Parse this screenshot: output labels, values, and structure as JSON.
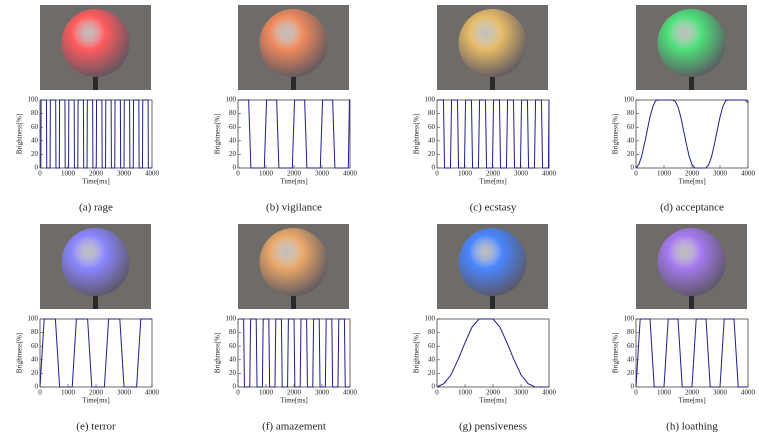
{
  "chart_data": [
    {
      "type": "line",
      "caption": "(a)  rage",
      "xlabel": "Time[ms]",
      "ylabel": "Brightness[%]",
      "color": "#1f1f8a",
      "x": [
        0,
        30,
        40,
        230,
        240,
        360,
        370,
        560,
        570,
        690,
        700,
        890,
        900,
        1020,
        1030,
        1220,
        1230,
        1350,
        1360,
        1550,
        1560,
        1680,
        1690,
        1880,
        1890,
        2010,
        2020,
        2210,
        2220,
        2340,
        2350,
        2540,
        2550,
        2670,
        2680,
        2870,
        2880,
        3000,
        3010,
        3200,
        3210,
        3330,
        3340,
        3530,
        3540,
        3660,
        3670,
        3860,
        3870,
        4000
      ],
      "values": [
        0,
        0,
        100,
        100,
        0,
        0,
        100,
        100,
        0,
        0,
        100,
        100,
        0,
        0,
        100,
        100,
        0,
        0,
        100,
        100,
        0,
        0,
        100,
        100,
        0,
        0,
        100,
        100,
        0,
        0,
        100,
        100,
        0,
        0,
        100,
        100,
        0,
        0,
        100,
        100,
        0,
        0,
        100,
        100,
        0,
        0,
        100,
        100,
        0,
        0
      ],
      "xlim": [
        0,
        4000
      ],
      "ylim": [
        0,
        100
      ],
      "xticks": [
        0,
        1000,
        2000,
        3000,
        4000
      ],
      "yticks": [
        0,
        20,
        40,
        60,
        80,
        100
      ]
    },
    {
      "type": "line",
      "caption": "(b)  vigilance",
      "xlabel": "Time[ms]",
      "ylabel": "Brightness[%]",
      "color": "#1f1f8a",
      "x": [
        0,
        380,
        460,
        940,
        1020,
        1380,
        1460,
        1940,
        2020,
        2380,
        2460,
        2940,
        3020,
        3380,
        3460,
        3940,
        3980,
        4000
      ],
      "values": [
        100,
        100,
        0,
        0,
        100,
        100,
        0,
        0,
        100,
        100,
        0,
        0,
        100,
        100,
        0,
        0,
        100,
        100
      ],
      "xlim": [
        0,
        4000
      ],
      "ylim": [
        0,
        100
      ],
      "xticks": [
        0,
        1000,
        2000,
        3000,
        4000
      ],
      "yticks": [
        0,
        20,
        40,
        60,
        80,
        100
      ]
    },
    {
      "type": "line",
      "caption": "(c)  ecstasy",
      "xlabel": "Time[ms]",
      "ylabel": "Brightness[%]",
      "color": "#1f1f8a",
      "x": [
        0,
        230,
        270,
        480,
        520,
        730,
        770,
        980,
        1020,
        1230,
        1270,
        1480,
        1520,
        1730,
        1770,
        1980,
        2020,
        2230,
        2270,
        2480,
        2520,
        2730,
        2770,
        2980,
        3020,
        3230,
        3270,
        3480,
        3520,
        3730,
        3770,
        3980,
        4000
      ],
      "values": [
        100,
        100,
        0,
        0,
        100,
        100,
        0,
        0,
        100,
        100,
        0,
        0,
        100,
        100,
        0,
        0,
        100,
        100,
        0,
        0,
        100,
        100,
        0,
        0,
        100,
        100,
        0,
        0,
        100,
        100,
        0,
        0,
        100
      ],
      "xlim": [
        0,
        4000
      ],
      "ylim": [
        0,
        100
      ],
      "xticks": [
        0,
        1000,
        2000,
        3000,
        4000
      ],
      "yticks": [
        0,
        20,
        40,
        60,
        80,
        100
      ]
    },
    {
      "type": "line",
      "caption": "(d)  acceptance",
      "xlabel": "Time[ms]",
      "ylabel": "Brightness[%]",
      "color": "#1f1f8a",
      "x": [
        0,
        100,
        200,
        300,
        400,
        500,
        600,
        700,
        800,
        1300,
        1400,
        1500,
        1600,
        1700,
        1800,
        1900,
        2000,
        2100,
        2500,
        2600,
        2700,
        2800,
        2900,
        3000,
        3100,
        3200,
        3300,
        3900,
        4000
      ],
      "values": [
        0,
        5,
        17,
        35,
        55,
        75,
        90,
        99,
        100,
        100,
        98,
        90,
        75,
        55,
        35,
        17,
        5,
        0,
        0,
        5,
        17,
        35,
        55,
        75,
        90,
        99,
        100,
        100,
        96
      ],
      "xlim": [
        0,
        4000
      ],
      "ylim": [
        0,
        100
      ],
      "xticks": [
        0,
        1000,
        2000,
        3000,
        4000
      ],
      "yticks": [
        0,
        20,
        40,
        60,
        80,
        100
      ]
    },
    {
      "type": "line",
      "caption": "(e)  terror",
      "xlabel": "Time[ms]",
      "ylabel": "Brightness[%]",
      "color": "#1f1f8a",
      "x": [
        0,
        150,
        550,
        700,
        1150,
        1300,
        1700,
        1850,
        2300,
        2450,
        2850,
        3000,
        3450,
        3600,
        4000
      ],
      "values": [
        0,
        100,
        100,
        0,
        0,
        100,
        100,
        0,
        0,
        100,
        100,
        0,
        0,
        100,
        100
      ],
      "xlim": [
        0,
        4000
      ],
      "ylim": [
        0,
        100
      ],
      "xticks": [
        0,
        1000,
        2000,
        3000,
        4000
      ],
      "yticks": [
        0,
        20,
        40,
        60,
        80,
        100
      ]
    },
    {
      "type": "line",
      "caption": "(f)  amazement",
      "xlabel": "Time[ms]",
      "ylabel": "Brightness[%]",
      "color": "#1f1f8a",
      "x": [
        0,
        200,
        230,
        420,
        450,
        650,
        680,
        870,
        900,
        1100,
        1130,
        1320,
        1350,
        1550,
        1580,
        1770,
        1800,
        2000,
        2030,
        2220,
        2250,
        2450,
        2480,
        2670,
        2700,
        2900,
        2930,
        3120,
        3150,
        3350,
        3380,
        3570,
        3600,
        3800,
        3830,
        4000
      ],
      "values": [
        100,
        100,
        0,
        0,
        100,
        100,
        0,
        0,
        100,
        100,
        0,
        0,
        100,
        100,
        0,
        0,
        100,
        100,
        0,
        0,
        100,
        100,
        0,
        0,
        100,
        100,
        0,
        0,
        100,
        100,
        0,
        0,
        100,
        100,
        0,
        0
      ],
      "xlim": [
        0,
        4000
      ],
      "ylim": [
        0,
        100
      ],
      "xticks": [
        0,
        1000,
        2000,
        3000,
        4000
      ],
      "yticks": [
        0,
        20,
        40,
        60,
        80,
        100
      ]
    },
    {
      "type": "line",
      "caption": "(g)  pensiveness",
      "xlabel": "Time[ms]",
      "ylabel": "Brightness[%]",
      "color": "#1f1f8a",
      "x": [
        0,
        250,
        500,
        750,
        1000,
        1250,
        1500,
        2000,
        2250,
        2500,
        2750,
        3000,
        3250,
        3500,
        4000
      ],
      "values": [
        0,
        5,
        18,
        40,
        65,
        88,
        100,
        100,
        88,
        65,
        40,
        18,
        5,
        0,
        0
      ],
      "xlim": [
        0,
        4000
      ],
      "ylim": [
        0,
        100
      ],
      "xticks": [
        0,
        1000,
        2000,
        3000,
        4000
      ],
      "yticks": [
        0,
        20,
        40,
        60,
        80,
        100
      ]
    },
    {
      "type": "line",
      "caption": "(h)  loathing",
      "xlabel": "Time[ms]",
      "ylabel": "Brightness[%]",
      "color": "#1f1f8a",
      "x": [
        0,
        150,
        500,
        650,
        1000,
        1150,
        1500,
        1650,
        2000,
        2150,
        2500,
        2650,
        3000,
        3150,
        3500,
        3650,
        4000
      ],
      "values": [
        0,
        100,
        100,
        0,
        0,
        100,
        100,
        0,
        0,
        100,
        100,
        0,
        0,
        100,
        100,
        0,
        0
      ],
      "xlim": [
        0,
        4000
      ],
      "ylim": [
        0,
        100
      ],
      "xticks": [
        0,
        1000,
        2000,
        3000,
        4000
      ],
      "yticks": [
        0,
        20,
        40,
        60,
        80,
        100
      ]
    }
  ]
}
